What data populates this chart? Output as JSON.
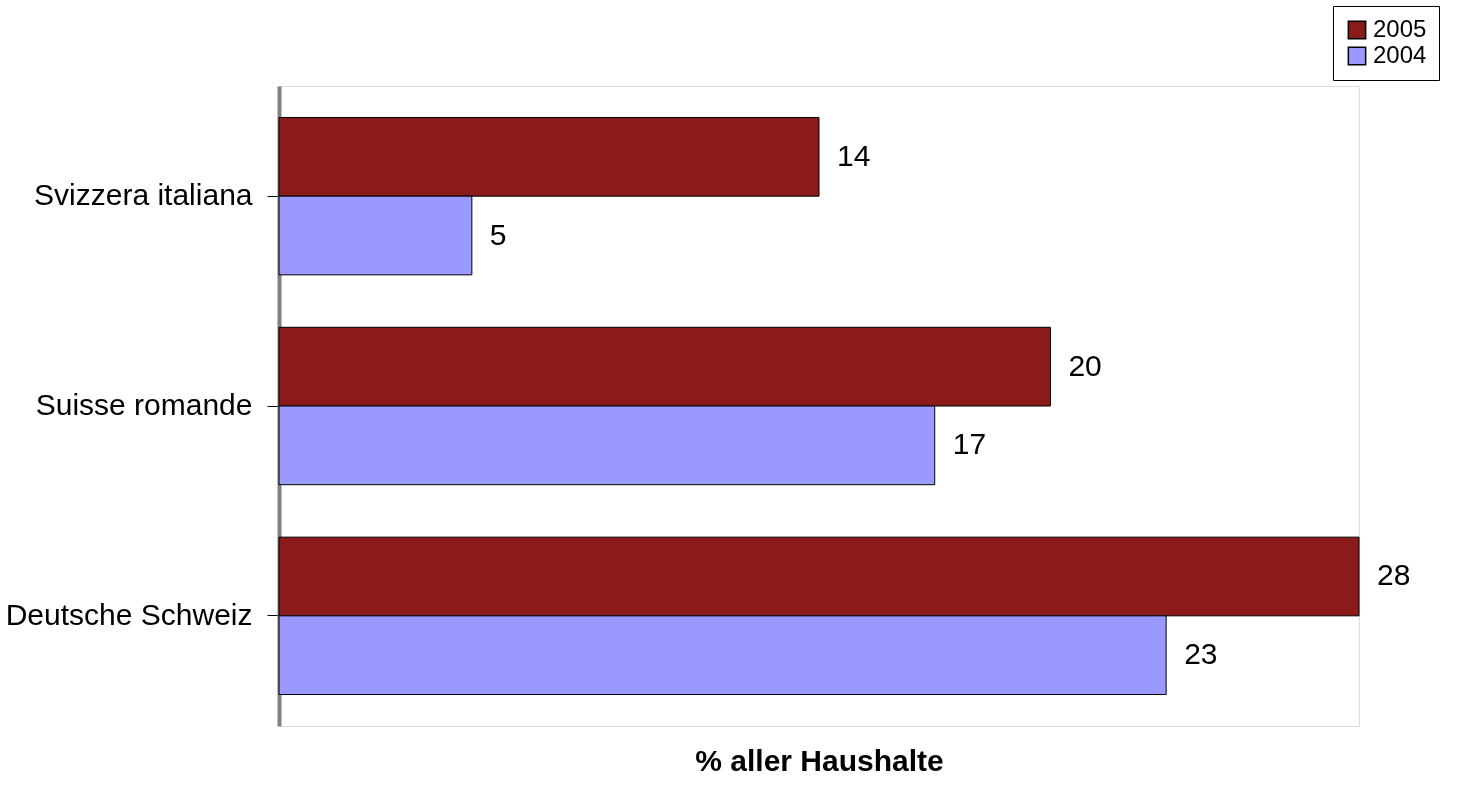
{
  "chart_data": {
    "type": "bar",
    "orientation": "horizontal",
    "categories": [
      "Svizzera italiana",
      "Suisse romande",
      "Deutsche Schweiz"
    ],
    "series": [
      {
        "name": "2005",
        "color": "#8b1a1a",
        "values": [
          14,
          20,
          28
        ]
      },
      {
        "name": "2004",
        "color": "#9999ff",
        "values": [
          5,
          17,
          23
        ]
      }
    ],
    "xlabel": "% aller Haushalte",
    "data_labels": true,
    "legend": "top right",
    "grid": false,
    "tick_labels": "y"
  }
}
